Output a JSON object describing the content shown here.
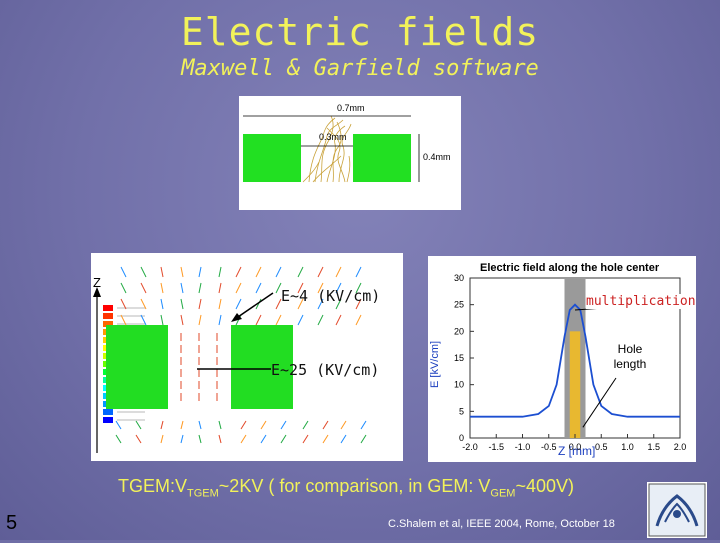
{
  "slide": {
    "title": "Electric fields",
    "subtitle": "Maxwell & Garfield software",
    "slide_number": "5",
    "credit": "C.Shalem et al,  IEEE 2004, Rome, October 18",
    "note_prefix": "TGEM:V",
    "note_sub1": "TGEM",
    "note_mid": "~2KV ( for comparison, in GEM: V",
    "note_sub2": "GEM",
    "note_suffix": "~400V)"
  },
  "top_figure": {
    "dim_outer": "0.7mm",
    "dim_inner": "0.3mm",
    "dim_height": "0.4mm"
  },
  "field_map": {
    "axis_label": "Z",
    "annotation_top": "E~4 (KV/cm)",
    "annotation_bottom": "E~25 (KV/cm)"
  },
  "chart_data": {
    "type": "line",
    "title": "Electric field along the hole center",
    "xlabel": "Z [mm]",
    "ylabel": "E [kV/cm]",
    "xlim": [
      -2.0,
      2.0
    ],
    "ylim": [
      0,
      30
    ],
    "xticks": [
      "-2.0",
      "-1.5",
      "-1.0",
      "-0.5",
      "0.0",
      "0.5",
      "1.0",
      "1.5",
      "2.0"
    ],
    "yticks": [
      "0",
      "5",
      "10",
      "15",
      "20",
      "25",
      "30"
    ],
    "x": [
      -2.0,
      -1.5,
      -1.0,
      -0.7,
      -0.5,
      -0.35,
      -0.2,
      -0.1,
      0.0,
      0.1,
      0.2,
      0.35,
      0.5,
      0.7,
      1.0,
      1.5,
      2.0
    ],
    "y": [
      4,
      4,
      4,
      4.5,
      6,
      10,
      19,
      24,
      25,
      24,
      19,
      10,
      6,
      4.5,
      4,
      4,
      4
    ],
    "annotations": [
      "multiplication",
      "Hole length"
    ]
  }
}
